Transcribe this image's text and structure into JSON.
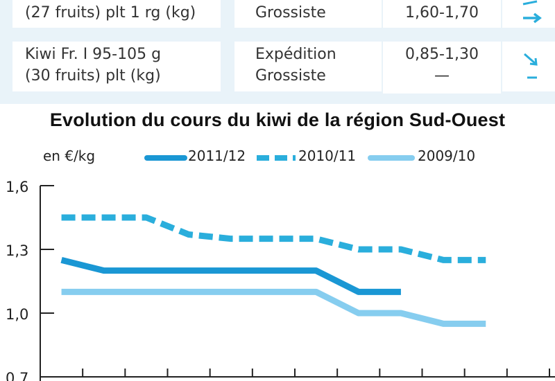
{
  "table": {
    "rows": [
      {
        "product_lines": [
          "(27 fruits) plt 1 rg (kg)"
        ],
        "stage_lines": [
          "Grossiste"
        ],
        "price_lines": [
          "1,60-1,70"
        ],
        "trend_icon": "arrow-right-icon"
      },
      {
        "product_lines": [
          "Kiwi Fr. I 95-105 g",
          "(30 fruits) plt (kg)"
        ],
        "stage_lines": [
          "Expédition",
          "Grossiste"
        ],
        "price_lines": [
          "0,85-1,30",
          "—"
        ],
        "trend_icons": [
          "arrow-down-right-icon",
          "dash-icon"
        ]
      }
    ]
  },
  "colors": {
    "accent_dark": "#1a97d4",
    "accent_mid": "#2aaedc",
    "accent_light": "#86cdef",
    "table_bg": "#e9f3f9",
    "axis": "#222222"
  },
  "chart_data": {
    "type": "line",
    "title": "Evolution du cours du kiwi de la région Sud-Ouest",
    "ylabel": "en €/kg",
    "ylim": [
      0.7,
      1.6
    ],
    "yticks": [
      "1,6",
      "1,3",
      "1,0",
      "0,7"
    ],
    "ytick_values": [
      1.6,
      1.3,
      1.0,
      0.7
    ],
    "x": [
      1,
      2,
      3,
      4,
      5,
      6,
      7,
      8,
      9,
      10,
      11,
      12
    ],
    "xlim": [
      0.5,
      12.5
    ],
    "legend_placement": "top",
    "grid": false,
    "series": [
      {
        "name": "2011/12",
        "style": "solid-thick",
        "x": [
          1,
          2,
          3,
          4,
          5,
          6,
          7,
          8,
          9
        ],
        "values": [
          1.25,
          1.2,
          1.2,
          1.2,
          1.2,
          1.2,
          1.2,
          1.1,
          1.1
        ]
      },
      {
        "name": "2010/11",
        "style": "dashed",
        "x": [
          1,
          2,
          3,
          4,
          5,
          6,
          7,
          8,
          9,
          10,
          11
        ],
        "values": [
          1.45,
          1.45,
          1.45,
          1.37,
          1.35,
          1.35,
          1.35,
          1.3,
          1.3,
          1.25,
          1.25
        ]
      },
      {
        "name": "2009/10",
        "style": "solid-light",
        "x": [
          1,
          2,
          3,
          4,
          5,
          6,
          7,
          8,
          9,
          10,
          11
        ],
        "values": [
          1.1,
          1.1,
          1.1,
          1.1,
          1.1,
          1.1,
          1.1,
          1.0,
          1.0,
          0.95,
          0.95
        ]
      }
    ]
  }
}
